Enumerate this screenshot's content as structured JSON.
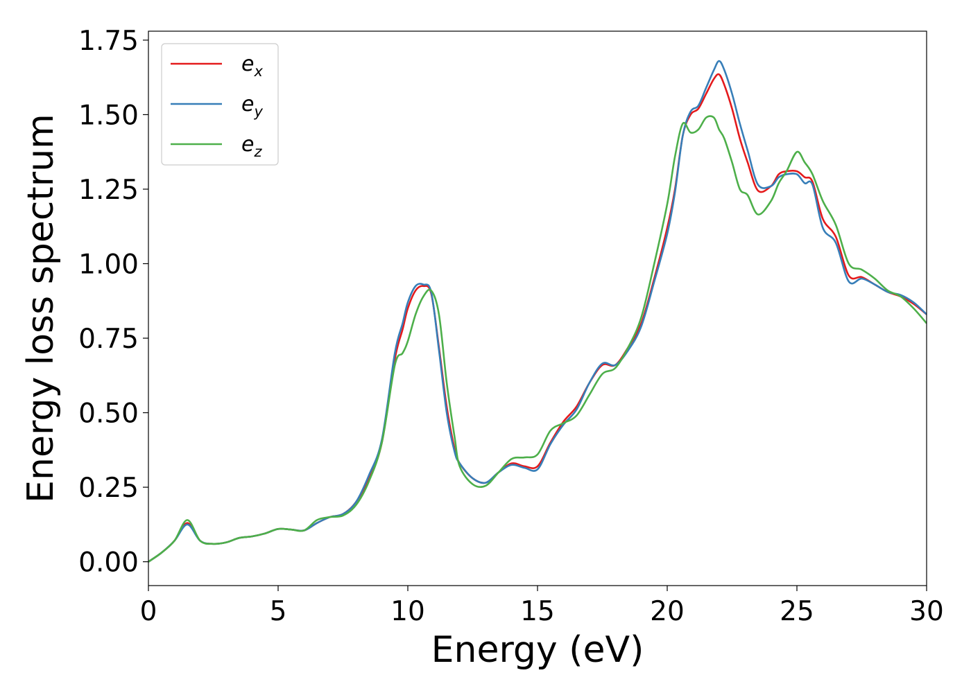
{
  "chart_data": {
    "type": "line",
    "title": "",
    "xlabel": "Energy (eV)",
    "ylabel": "Energy loss spectrum",
    "xlim": [
      0,
      30
    ],
    "ylim": [
      -0.08,
      1.78
    ],
    "x_ticks": [
      0,
      5,
      10,
      15,
      20,
      25,
      30
    ],
    "x_tick_labels": [
      "0",
      "5",
      "10",
      "15",
      "20",
      "25",
      "30"
    ],
    "y_ticks": [
      0.0,
      0.25,
      0.5,
      0.75,
      1.0,
      1.25,
      1.5,
      1.75
    ],
    "y_tick_labels": [
      "0.00",
      "0.25",
      "0.50",
      "0.75",
      "1.00",
      "1.25",
      "1.50",
      "1.75"
    ],
    "grid": false,
    "legend_position": "top-left",
    "x": [
      0,
      0.5,
      1.0,
      1.5,
      2.0,
      2.5,
      3.0,
      3.5,
      4.0,
      4.5,
      5.0,
      5.5,
      6.0,
      6.5,
      7.0,
      7.5,
      8.0,
      8.5,
      9.0,
      9.5,
      9.8,
      10.0,
      10.3,
      10.6,
      10.9,
      11.2,
      11.5,
      11.8,
      12.0,
      12.5,
      13.0,
      13.5,
      14.0,
      14.5,
      15.0,
      15.5,
      16.0,
      16.5,
      17.0,
      17.5,
      18.0,
      18.5,
      19.0,
      19.5,
      20.0,
      20.3,
      20.6,
      20.9,
      21.2,
      21.5,
      21.8,
      22.0,
      22.2,
      22.5,
      22.8,
      23.1,
      23.5,
      24.0,
      24.3,
      24.6,
      25.0,
      25.3,
      25.6,
      26.0,
      26.5,
      27.0,
      27.5,
      28.0,
      28.5,
      29.0,
      29.5,
      30.0
    ],
    "series": [
      {
        "name": "e_x",
        "label_base": "e",
        "label_sub": "x",
        "color": "#e41a1c",
        "values": [
          0.0,
          0.03,
          0.07,
          0.13,
          0.07,
          0.06,
          0.065,
          0.08,
          0.085,
          0.095,
          0.11,
          0.108,
          0.105,
          0.13,
          0.15,
          0.16,
          0.2,
          0.28,
          0.4,
          0.68,
          0.78,
          0.85,
          0.91,
          0.925,
          0.9,
          0.72,
          0.52,
          0.38,
          0.33,
          0.28,
          0.265,
          0.3,
          0.33,
          0.32,
          0.32,
          0.4,
          0.47,
          0.52,
          0.6,
          0.66,
          0.66,
          0.72,
          0.8,
          0.95,
          1.12,
          1.25,
          1.43,
          1.5,
          1.52,
          1.57,
          1.62,
          1.635,
          1.6,
          1.52,
          1.42,
          1.34,
          1.245,
          1.26,
          1.3,
          1.31,
          1.31,
          1.29,
          1.275,
          1.15,
          1.09,
          0.96,
          0.955,
          0.93,
          0.905,
          0.89,
          0.865,
          0.83
        ]
      },
      {
        "name": "e_y",
        "label_base": "e",
        "label_sub": "y",
        "color": "#377eb8",
        "values": [
          0.0,
          0.03,
          0.07,
          0.125,
          0.07,
          0.06,
          0.065,
          0.08,
          0.085,
          0.095,
          0.11,
          0.108,
          0.105,
          0.13,
          0.15,
          0.16,
          0.2,
          0.29,
          0.41,
          0.7,
          0.8,
          0.87,
          0.925,
          0.93,
          0.905,
          0.71,
          0.5,
          0.37,
          0.33,
          0.28,
          0.265,
          0.3,
          0.325,
          0.315,
          0.31,
          0.395,
          0.46,
          0.51,
          0.6,
          0.665,
          0.66,
          0.71,
          0.79,
          0.94,
          1.1,
          1.24,
          1.43,
          1.51,
          1.53,
          1.59,
          1.65,
          1.68,
          1.65,
          1.57,
          1.47,
          1.38,
          1.265,
          1.26,
          1.29,
          1.3,
          1.3,
          1.27,
          1.265,
          1.12,
          1.07,
          0.94,
          0.95,
          0.93,
          0.905,
          0.895,
          0.87,
          0.83
        ]
      },
      {
        "name": "e_z",
        "label_base": "e",
        "label_sub": "z",
        "color": "#4daf4a",
        "values": [
          0.0,
          0.03,
          0.07,
          0.14,
          0.07,
          0.06,
          0.065,
          0.08,
          0.085,
          0.095,
          0.11,
          0.108,
          0.105,
          0.14,
          0.15,
          0.155,
          0.19,
          0.27,
          0.4,
          0.66,
          0.7,
          0.74,
          0.83,
          0.89,
          0.91,
          0.83,
          0.6,
          0.42,
          0.32,
          0.26,
          0.255,
          0.3,
          0.345,
          0.35,
          0.36,
          0.44,
          0.465,
          0.49,
          0.56,
          0.63,
          0.65,
          0.72,
          0.82,
          1.0,
          1.2,
          1.36,
          1.47,
          1.44,
          1.45,
          1.49,
          1.49,
          1.45,
          1.42,
          1.34,
          1.25,
          1.23,
          1.165,
          1.21,
          1.27,
          1.31,
          1.375,
          1.34,
          1.3,
          1.21,
          1.13,
          1.0,
          0.98,
          0.95,
          0.91,
          0.89,
          0.85,
          0.8
        ]
      }
    ]
  }
}
